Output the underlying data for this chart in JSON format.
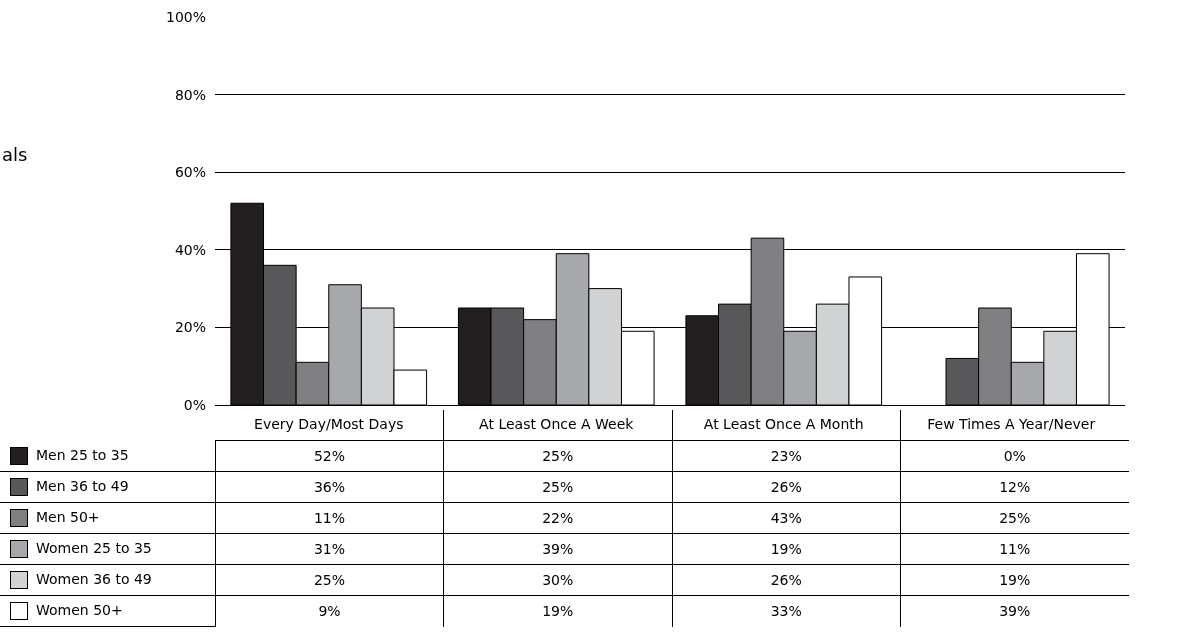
{
  "chart_data": {
    "type": "bar",
    "categories": [
      "Every Day/Most Days",
      "At Least Once A Week",
      "At Least Once A Month",
      "Few Times A Year/Never"
    ],
    "series": [
      {
        "name": "Men 25 to 35",
        "color": "#231f20",
        "values": [
          52,
          25,
          23,
          0
        ],
        "value_labels": [
          "52%",
          "25%",
          "23%",
          "0%"
        ]
      },
      {
        "name": "Men 36 to 49",
        "color": "#58585a",
        "values": [
          36,
          25,
          26,
          12
        ],
        "value_labels": [
          "36%",
          "25%",
          "26%",
          "12%"
        ]
      },
      {
        "name": "Men 50+",
        "color": "#808083",
        "values": [
          11,
          22,
          43,
          25
        ],
        "value_labels": [
          "11%",
          "22%",
          "43%",
          "25%"
        ]
      },
      {
        "name": "Women 25 to 35",
        "color": "#a7a8ab",
        "values": [
          31,
          39,
          19,
          11
        ],
        "value_labels": [
          "31%",
          "39%",
          "19%",
          "11%"
        ]
      },
      {
        "name": "Women 36 to 49",
        "color": "#d1d2d4",
        "values": [
          25,
          30,
          26,
          19
        ],
        "value_labels": [
          "25%",
          "30%",
          "26%",
          "19%"
        ]
      },
      {
        "name": "Women 50+",
        "color": "#ffffff",
        "values": [
          9,
          19,
          33,
          39
        ],
        "value_labels": [
          "9%",
          "19%",
          "33%",
          "39%"
        ]
      }
    ],
    "ylim": [
      0,
      100
    ],
    "yticks": [
      {
        "value": 0,
        "label": "0%"
      },
      {
        "value": 20,
        "label": "20%"
      },
      {
        "value": 40,
        "label": "40%"
      },
      {
        "value": 60,
        "label": "60%"
      },
      {
        "value": 80,
        "label": "80%"
      },
      {
        "value": 100,
        "label": "100%"
      }
    ],
    "grid": "y",
    "legend": "bottom left",
    "annotations": [
      "als"
    ]
  }
}
